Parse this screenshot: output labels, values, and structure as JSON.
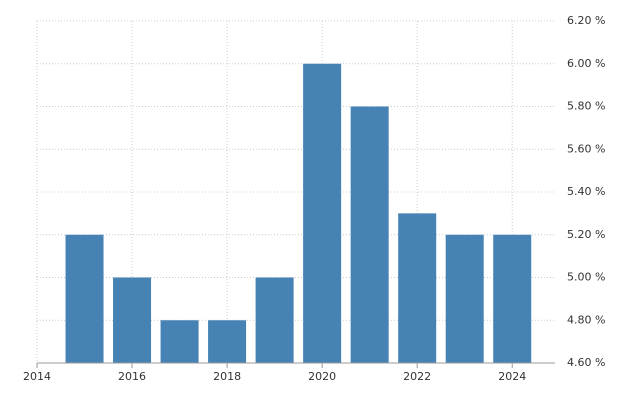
{
  "chart_data": {
    "type": "bar",
    "x": [
      2015,
      2016,
      2017,
      2018,
      2019,
      2020,
      2021,
      2022,
      2023,
      2024
    ],
    "values": [
      5.2,
      5.0,
      4.8,
      4.8,
      5.0,
      6.0,
      5.8,
      5.3,
      5.2,
      5.2
    ],
    "color": "#4682b4",
    "xlim": [
      2014,
      2024.9
    ],
    "xticks": [
      2014,
      2016,
      2018,
      2020,
      2022,
      2024
    ],
    "ylim": [
      4.6,
      6.2
    ],
    "yticks": [
      {
        "value": 4.6,
        "label": "4.60 %"
      },
      {
        "value": 4.8,
        "label": "4.80 %"
      },
      {
        "value": 5.0,
        "label": "5.00 %"
      },
      {
        "value": 5.2,
        "label": "5.20 %"
      },
      {
        "value": 5.4,
        "label": "5.40 %"
      },
      {
        "value": 5.6,
        "label": "5.60 %"
      },
      {
        "value": 5.8,
        "label": "5.80 %"
      },
      {
        "value": 6.0,
        "label": "6.00 %"
      },
      {
        "value": 6.2,
        "label": "6.20 %"
      }
    ],
    "grid": true
  }
}
